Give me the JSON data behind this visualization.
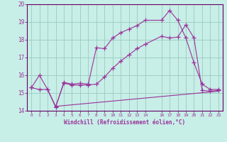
{
  "xlabel": "Windchill (Refroidissement éolien,°C)",
  "bg_color": "#c8eee8",
  "grid_color": "#99ccbb",
  "line_color": "#993399",
  "axis_color": "#660066",
  "xlim": [
    -0.5,
    23.5
  ],
  "ylim": [
    14,
    20
  ],
  "xticks": [
    0,
    1,
    2,
    3,
    4,
    5,
    6,
    7,
    8,
    9,
    10,
    11,
    12,
    13,
    14,
    16,
    17,
    18,
    19,
    20,
    21,
    22,
    23
  ],
  "yticks": [
    14,
    15,
    16,
    17,
    18,
    19,
    20
  ],
  "line1_x": [
    0,
    1,
    2,
    3,
    4,
    5,
    6,
    7,
    8,
    9,
    10,
    11,
    12,
    13,
    14,
    16,
    17,
    18,
    19,
    20,
    21,
    22,
    23
  ],
  "line1_y": [
    15.3,
    16.0,
    15.2,
    14.2,
    15.6,
    15.5,
    15.55,
    15.5,
    17.55,
    17.5,
    18.1,
    18.4,
    18.6,
    18.8,
    19.1,
    19.1,
    19.65,
    19.1,
    18.1,
    16.7,
    15.5,
    15.2,
    15.2
  ],
  "line2_x": [
    0,
    1,
    2,
    3,
    4,
    5,
    6,
    7,
    8,
    9,
    10,
    11,
    12,
    13,
    14,
    16,
    17,
    18,
    19,
    20,
    21,
    22,
    23
  ],
  "line2_y": [
    15.3,
    15.2,
    15.2,
    14.25,
    15.55,
    15.45,
    15.45,
    15.45,
    15.5,
    15.9,
    16.4,
    16.8,
    17.15,
    17.5,
    17.75,
    18.2,
    18.1,
    18.15,
    18.85,
    18.1,
    15.15,
    15.1,
    15.15
  ],
  "line3_x": [
    3,
    23
  ],
  "line3_y": [
    14.25,
    15.1
  ]
}
